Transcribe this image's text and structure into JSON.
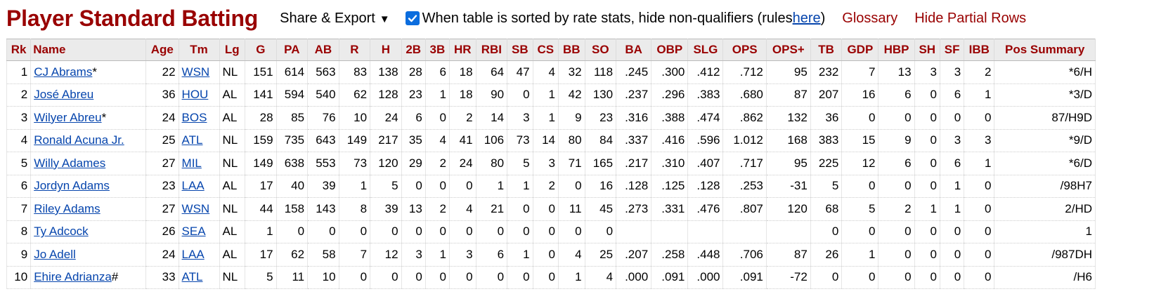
{
  "header": {
    "title": "Player Standard Batting",
    "share_label": "Share & Export",
    "caret": "▼",
    "qualifier_text": "When table is sorted by rate stats, hide non-qualifiers (rules ",
    "qualifier_link": "here",
    "qualifier_close": ")",
    "glossary": "Glossary",
    "hide_partial": "Hide Partial Rows",
    "checkbox_color": "#0b6dde"
  },
  "table": {
    "columns": [
      "Rk",
      "Name",
      "Age",
      "Tm",
      "Lg",
      "G",
      "PA",
      "AB",
      "R",
      "H",
      "2B",
      "3B",
      "HR",
      "RBI",
      "SB",
      "CS",
      "BB",
      "SO",
      "BA",
      "OBP",
      "SLG",
      "OPS",
      "OPS+",
      "TB",
      "GDP",
      "HBP",
      "SH",
      "SF",
      "IBB",
      "Pos Summary"
    ],
    "rows": [
      {
        "rk": "1",
        "name": "CJ Abrams",
        "mark": "*",
        "age": "22",
        "tm": "WSN",
        "lg": "NL",
        "g": "151",
        "pa": "614",
        "ab": "563",
        "r": "83",
        "h": "138",
        "b2": "28",
        "b3": "6",
        "hr": "18",
        "rbi": "64",
        "sb": "47",
        "cs": "4",
        "bb": "32",
        "so": "118",
        "ba": ".245",
        "obp": ".300",
        "slg": ".412",
        "ops": ".712",
        "opsp": "95",
        "tb": "232",
        "gdp": "7",
        "hbp": "13",
        "sh": "3",
        "sf": "3",
        "ibb": "2",
        "pos": "*6/H"
      },
      {
        "rk": "2",
        "name": "José Abreu",
        "mark": "",
        "age": "36",
        "tm": "HOU",
        "lg": "AL",
        "g": "141",
        "pa": "594",
        "ab": "540",
        "r": "62",
        "h": "128",
        "b2": "23",
        "b3": "1",
        "hr": "18",
        "rbi": "90",
        "sb": "0",
        "cs": "1",
        "bb": "42",
        "so": "130",
        "ba": ".237",
        "obp": ".296",
        "slg": ".383",
        "ops": ".680",
        "opsp": "87",
        "tb": "207",
        "gdp": "16",
        "hbp": "6",
        "sh": "0",
        "sf": "6",
        "ibb": "1",
        "pos": "*3/D"
      },
      {
        "rk": "3",
        "name": "Wilyer Abreu",
        "mark": "*",
        "age": "24",
        "tm": "BOS",
        "lg": "AL",
        "g": "28",
        "pa": "85",
        "ab": "76",
        "r": "10",
        "h": "24",
        "b2": "6",
        "b3": "0",
        "hr": "2",
        "rbi": "14",
        "sb": "3",
        "cs": "1",
        "bb": "9",
        "so": "23",
        "ba": ".316",
        "obp": ".388",
        "slg": ".474",
        "ops": ".862",
        "opsp": "132",
        "tb": "36",
        "gdp": "0",
        "hbp": "0",
        "sh": "0",
        "sf": "0",
        "ibb": "0",
        "pos": "87/H9D"
      },
      {
        "rk": "4",
        "name": "Ronald Acuna Jr.",
        "mark": "",
        "age": "25",
        "tm": "ATL",
        "lg": "NL",
        "g": "159",
        "pa": "735",
        "ab": "643",
        "r": "149",
        "h": "217",
        "b2": "35",
        "b3": "4",
        "hr": "41",
        "rbi": "106",
        "sb": "73",
        "cs": "14",
        "bb": "80",
        "so": "84",
        "ba": ".337",
        "obp": ".416",
        "slg": ".596",
        "ops": "1.012",
        "opsp": "168",
        "tb": "383",
        "gdp": "15",
        "hbp": "9",
        "sh": "0",
        "sf": "3",
        "ibb": "3",
        "pos": "*9/D"
      },
      {
        "rk": "5",
        "name": "Willy Adames",
        "mark": "",
        "age": "27",
        "tm": "MIL",
        "lg": "NL",
        "g": "149",
        "pa": "638",
        "ab": "553",
        "r": "73",
        "h": "120",
        "b2": "29",
        "b3": "2",
        "hr": "24",
        "rbi": "80",
        "sb": "5",
        "cs": "3",
        "bb": "71",
        "so": "165",
        "ba": ".217",
        "obp": ".310",
        "slg": ".407",
        "ops": ".717",
        "opsp": "95",
        "tb": "225",
        "gdp": "12",
        "hbp": "6",
        "sh": "0",
        "sf": "6",
        "ibb": "1",
        "pos": "*6/D"
      },
      {
        "rk": "6",
        "name": "Jordyn Adams",
        "mark": "",
        "age": "23",
        "tm": "LAA",
        "lg": "AL",
        "g": "17",
        "pa": "40",
        "ab": "39",
        "r": "1",
        "h": "5",
        "b2": "0",
        "b3": "0",
        "hr": "0",
        "rbi": "1",
        "sb": "1",
        "cs": "2",
        "bb": "0",
        "so": "16",
        "ba": ".128",
        "obp": ".125",
        "slg": ".128",
        "ops": ".253",
        "opsp": "-31",
        "tb": "5",
        "gdp": "0",
        "hbp": "0",
        "sh": "0",
        "sf": "1",
        "ibb": "0",
        "pos": "/98H7"
      },
      {
        "rk": "7",
        "name": "Riley Adams",
        "mark": "",
        "age": "27",
        "tm": "WSN",
        "lg": "NL",
        "g": "44",
        "pa": "158",
        "ab": "143",
        "r": "8",
        "h": "39",
        "b2": "13",
        "b3": "2",
        "hr": "4",
        "rbi": "21",
        "sb": "0",
        "cs": "0",
        "bb": "11",
        "so": "45",
        "ba": ".273",
        "obp": ".331",
        "slg": ".476",
        "ops": ".807",
        "opsp": "120",
        "tb": "68",
        "gdp": "5",
        "hbp": "2",
        "sh": "1",
        "sf": "1",
        "ibb": "0",
        "pos": "2/HD"
      },
      {
        "rk": "8",
        "name": "Ty Adcock",
        "mark": "",
        "age": "26",
        "tm": "SEA",
        "lg": "AL",
        "g": "1",
        "pa": "0",
        "ab": "0",
        "r": "0",
        "h": "0",
        "b2": "0",
        "b3": "0",
        "hr": "0",
        "rbi": "0",
        "sb": "0",
        "cs": "0",
        "bb": "0",
        "so": "0",
        "ba": "",
        "obp": "",
        "slg": "",
        "ops": "",
        "opsp": "",
        "tb": "0",
        "gdp": "0",
        "hbp": "0",
        "sh": "0",
        "sf": "0",
        "ibb": "0",
        "pos": "1"
      },
      {
        "rk": "9",
        "name": "Jo Adell",
        "mark": "",
        "age": "24",
        "tm": "LAA",
        "lg": "AL",
        "g": "17",
        "pa": "62",
        "ab": "58",
        "r": "7",
        "h": "12",
        "b2": "3",
        "b3": "1",
        "hr": "3",
        "rbi": "6",
        "sb": "1",
        "cs": "0",
        "bb": "4",
        "so": "25",
        "ba": ".207",
        "obp": ".258",
        "slg": ".448",
        "ops": ".706",
        "opsp": "87",
        "tb": "26",
        "gdp": "1",
        "hbp": "0",
        "sh": "0",
        "sf": "0",
        "ibb": "0",
        "pos": "/987DH"
      },
      {
        "rk": "10",
        "name": "Ehire Adrianza",
        "mark": "#",
        "age": "33",
        "tm": "ATL",
        "lg": "NL",
        "g": "5",
        "pa": "11",
        "ab": "10",
        "r": "0",
        "h": "0",
        "b2": "0",
        "b3": "0",
        "hr": "0",
        "rbi": "0",
        "sb": "0",
        "cs": "0",
        "bb": "1",
        "so": "4",
        "ba": ".000",
        "obp": ".091",
        "slg": ".000",
        "ops": ".091",
        "opsp": "-72",
        "tb": "0",
        "gdp": "0",
        "hbp": "0",
        "sh": "0",
        "sf": "0",
        "ibb": "0",
        "pos": "/H6"
      }
    ]
  }
}
